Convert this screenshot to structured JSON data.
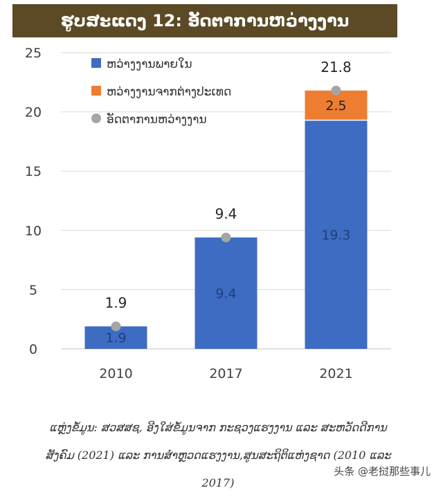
{
  "chart_data": {
    "type": "bar",
    "stacked": true,
    "title": "ຮູບສະແດງ 12: ອັດຕາການຫວ່າງງານ",
    "categories": [
      "2010",
      "2017",
      "2021"
    ],
    "series": [
      {
        "name": "ຫວ່າງງານພາຍໃນ",
        "values": [
          1.9,
          9.4,
          19.3
        ],
        "color": "#3d6cc2"
      },
      {
        "name": "ຫວ່າງງານຈາກຕ່າງປະເທດ",
        "values": [
          0,
          0,
          2.5
        ],
        "color": "#ed7d31"
      }
    ],
    "rate_series": {
      "name": "ອັດຕາການຫວ່າງງານ",
      "values": [
        1.9,
        9.4,
        21.8
      ],
      "color": "#a5a5a5"
    },
    "total_labels": [
      "1.9",
      "9.4",
      "21.8"
    ],
    "value_labels": {
      "domestic": [
        "1.9",
        "9.4",
        "19.3"
      ],
      "foreign": [
        "",
        "",
        "2.5"
      ]
    },
    "ylim": [
      0,
      25
    ],
    "yticks": [
      "0",
      "5",
      "10",
      "15",
      "20",
      "25"
    ],
    "grid": true,
    "legend_position": "top-left"
  },
  "source_text": {
    "line1": "ແຫຼ່ງຂໍ້ມູນ: ສວສສຊ, ອີງໃສ່ຂໍ້ມູນຈາກ ກະຊວງແຮງງານ ແລະ ສະຫວັດດີການ",
    "line2": "ສັງຄົມ (2021) ແລະ ການສໍາຫຼວດແຮງງານ,ສູນສະຖິຕິແຫ່ງຊາດ (2010 ແລະ",
    "line3": "2017)"
  },
  "watermark": "头条 @老挝那些事儿"
}
